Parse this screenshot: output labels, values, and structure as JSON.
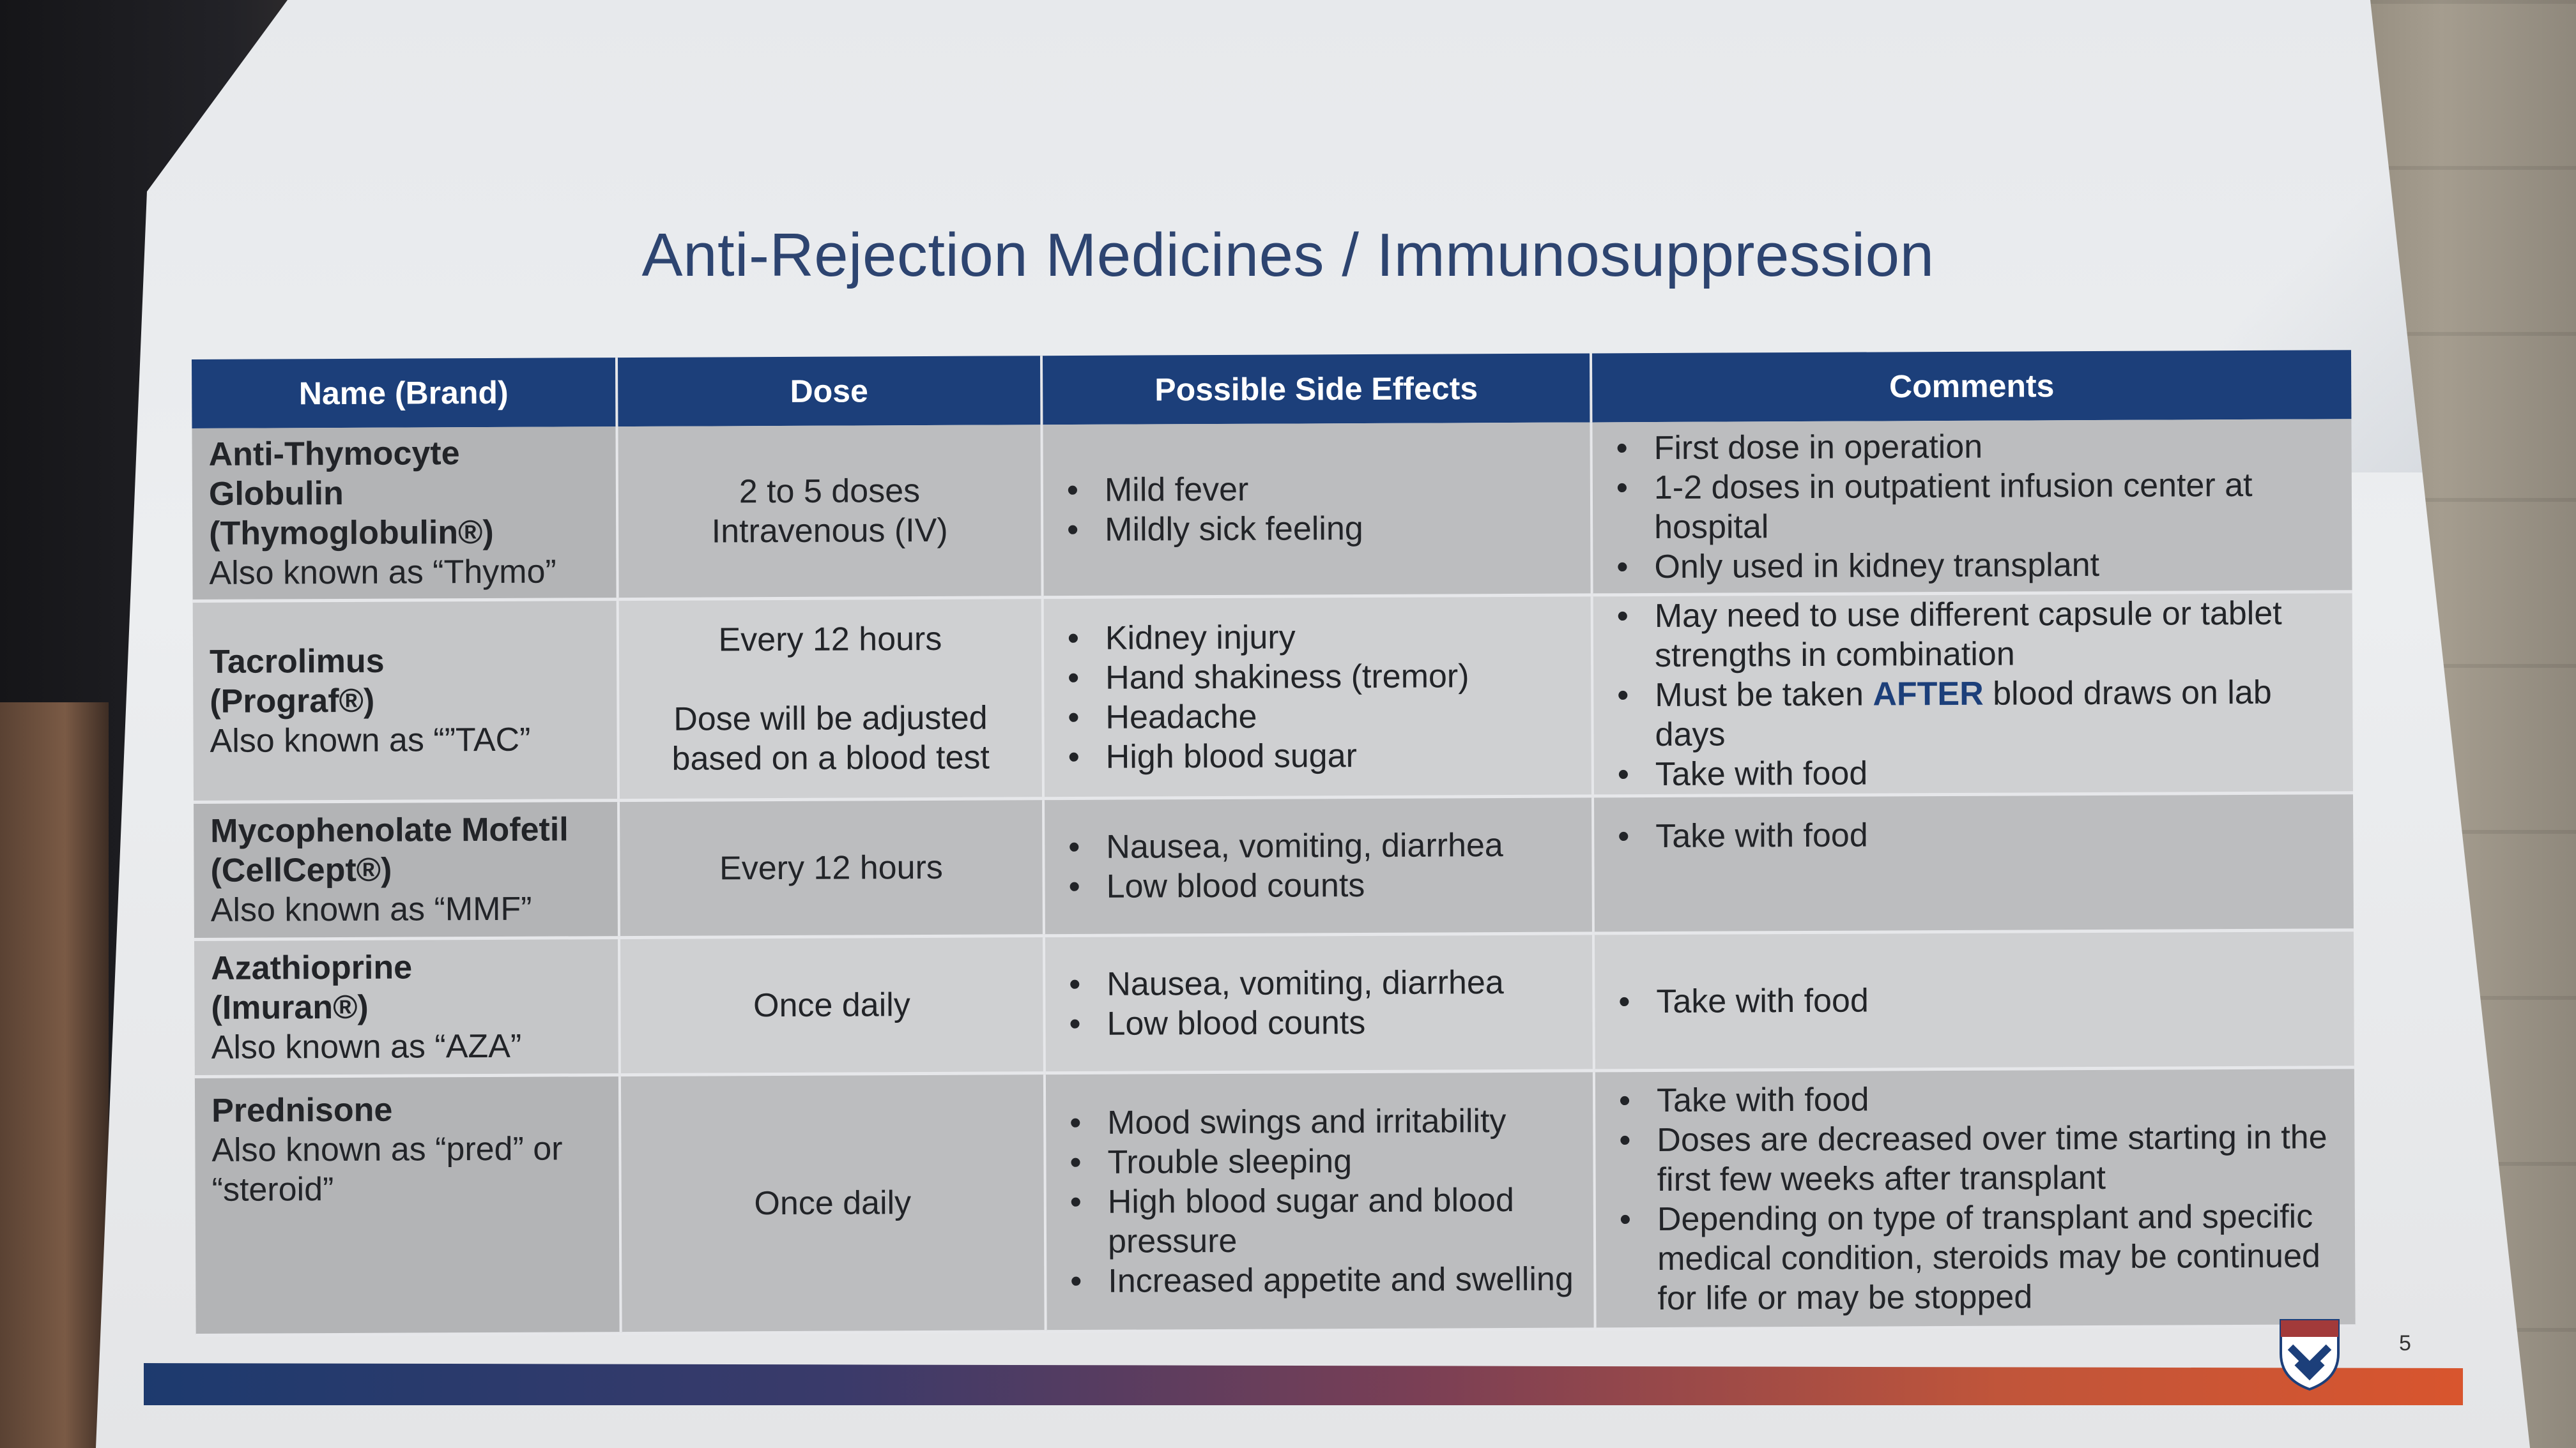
{
  "slide": {
    "title": "Anti-Rejection Medicines / Immunosuppression",
    "page_number": "5"
  },
  "table": {
    "headers": [
      "Name (Brand)",
      "Dose",
      "Possible Side Effects",
      "Comments"
    ],
    "rows": [
      {
        "name": "Anti-Thymocyte Globulin",
        "brand": "(Thymoglobulin®)",
        "aka": "Also known as “Thymo”",
        "dose_lines": [
          "2 to 5 doses",
          "Intravenous (IV)"
        ],
        "side_effects": [
          "Mild fever",
          "Mildly sick feeling"
        ],
        "comments": [
          "First dose in operation",
          "1-2 doses in outpatient infusion center at hospital",
          "Only used in kidney transplant"
        ]
      },
      {
        "name": "Tacrolimus",
        "brand": "(Prograf®)",
        "aka": "Also known as “”TAC”",
        "dose_lines": [
          "Every 12 hours",
          "",
          "Dose will be adjusted",
          "based on a blood test"
        ],
        "side_effects": [
          "Kidney injury",
          "Hand shakiness (tremor)",
          "Headache",
          "High blood sugar"
        ],
        "comments": [
          "May need to use different capsule or tablet strengths in combination",
          "Must be taken",
          "AFTER",
          "blood draws on lab days",
          "Take with food"
        ]
      },
      {
        "name": "Mycophenolate Mofetil",
        "brand": "(CellCept®)",
        "aka": "Also known as “MMF”",
        "dose_lines": [
          "Every 12 hours"
        ],
        "side_effects": [
          "Nausea, vomiting, diarrhea",
          "Low blood counts"
        ],
        "comments": [
          "Take with food"
        ]
      },
      {
        "name": "Azathioprine",
        "brand": "(Imuran®)",
        "aka": "Also known as “AZA”",
        "dose_lines": [
          "Once daily"
        ],
        "side_effects": [
          "Nausea, vomiting, diarrhea",
          "Low blood counts"
        ],
        "comments": [
          "Take with food"
        ]
      },
      {
        "name": "Prednisone",
        "aka_lines": [
          "Also known as “pred” or",
          "“steroid”"
        ],
        "dose_lines": [
          "Once daily"
        ],
        "side_effects": [
          "Mood swings and irritability",
          "Trouble sleeping",
          "High blood sugar and blood pressure",
          "Increased appetite and swelling"
        ],
        "comments": [
          "Take with food",
          "Doses are decreased over time starting in the first few weeks after transplant",
          "Depending on type of transplant and specific medical condition, steroids may be continued for life or may be stopped"
        ]
      }
    ]
  },
  "colors": {
    "header_bg": "#1c3f7a",
    "title": "#2d4470",
    "footer_start": "#1d3a6e",
    "footer_end": "#d8552e"
  },
  "icons": {
    "logo": "penn-shield-logo"
  }
}
